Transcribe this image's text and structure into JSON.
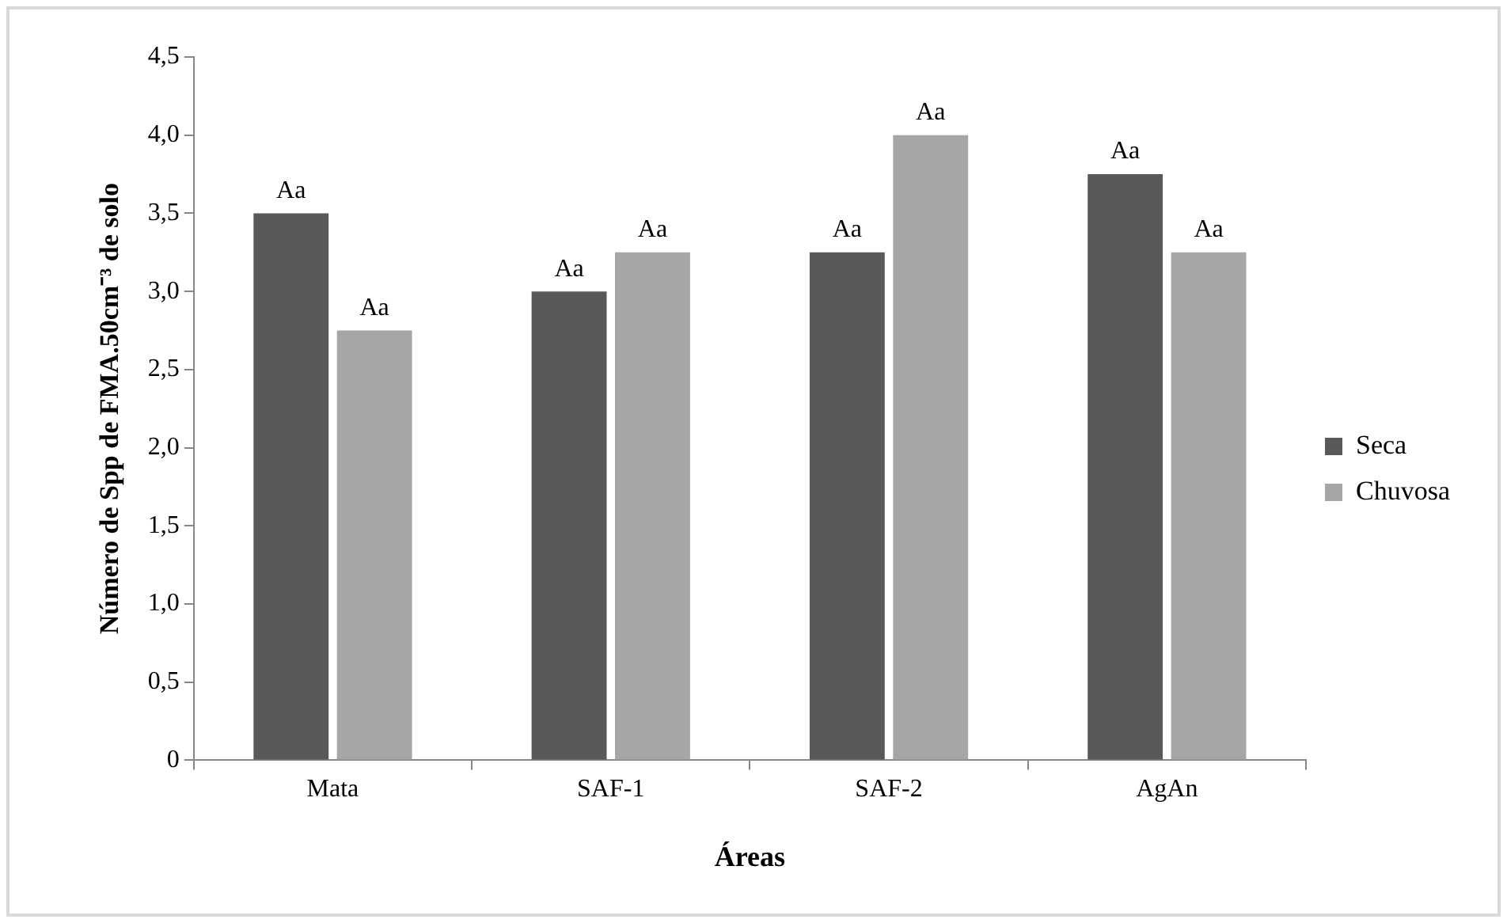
{
  "chart_data": {
    "type": "bar",
    "xlabel": "Áreas",
    "ylabel": "Número de Spp de FMA.50cm⁻³ de solo",
    "categories": [
      "Mata",
      "SAF-1",
      "SAF-2",
      "AgAn"
    ],
    "series": [
      {
        "name": "Seca",
        "color": "#595959",
        "values": [
          3.5,
          3.0,
          3.25,
          3.75
        ],
        "value_labels": [
          "Aa",
          "Aa",
          "Aa",
          "Aa"
        ]
      },
      {
        "name": "Chuvosa",
        "color": "#a6a6a6",
        "values": [
          2.75,
          3.25,
          4.0,
          3.25
        ],
        "value_labels": [
          "Aa",
          "Aa",
          "Aa",
          "Aa"
        ]
      }
    ],
    "ylim": [
      0,
      4.5
    ],
    "yticks": [
      0,
      {
        "value": 0.5,
        "label": "0,5"
      },
      {
        "value": 1,
        "label": "1,0"
      },
      {
        "value": 1.5,
        "label": "1,5"
      },
      {
        "value": 2,
        "label": "2,0"
      },
      {
        "value": 2.5,
        "label": "2,5"
      },
      {
        "value": 3,
        "label": "3,0"
      },
      {
        "value": 3.5,
        "label": "3,5"
      },
      {
        "value": 4,
        "label": "4,0"
      },
      {
        "value": 4.5,
        "label": "4,5"
      }
    ],
    "grid": false,
    "legend": "right"
  }
}
